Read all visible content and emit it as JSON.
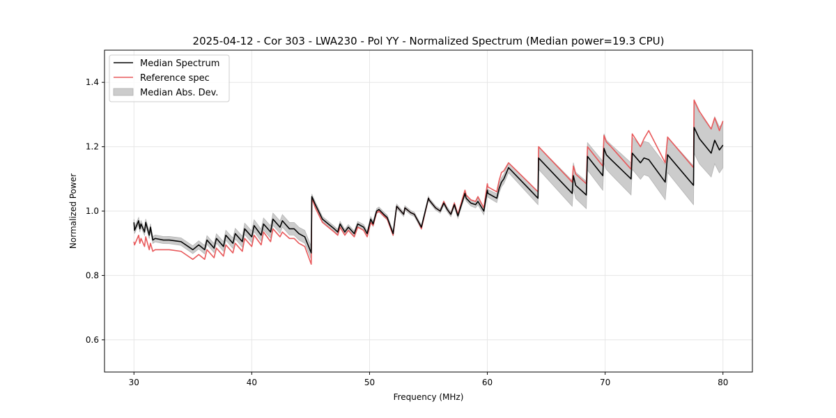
{
  "chart_data": {
    "type": "line",
    "title": "2025-04-12 - Cor 303 - LWA230 - Pol YY - Normalized Spectrum (Median power=19.3 CPU)",
    "xlabel": "Frequency (MHz)",
    "ylabel": "Normalized Power",
    "xlim": [
      27.5,
      82.5
    ],
    "ylim": [
      0.5,
      1.5
    ],
    "xticks": [
      30,
      40,
      50,
      60,
      70,
      80
    ],
    "xtick_labels": [
      "30",
      "40",
      "50",
      "60",
      "70",
      "80"
    ],
    "yticks": [
      0.6,
      0.8,
      1.0,
      1.2,
      1.4
    ],
    "ytick_labels": [
      "0.6",
      "0.8",
      "1.0",
      "1.2",
      "1.4"
    ],
    "grid": true,
    "legend_position": "top-left",
    "legend": [
      {
        "label": "Median Spectrum",
        "kind": "line",
        "color": "#000000"
      },
      {
        "label": "Reference spec",
        "kind": "line",
        "color": "#e8585a"
      },
      {
        "label": "Median Abs. Dev.",
        "kind": "band",
        "color": "#cccccc"
      }
    ],
    "series": [
      {
        "name": "Median Spectrum",
        "color": "#000000",
        "x": [
          30.0,
          30.05,
          30.4,
          30.5,
          30.6,
          30.9,
          31.0,
          31.3,
          31.4,
          31.6,
          31.8,
          32.5,
          33.0,
          34.0,
          35.0,
          35.5,
          36.0,
          36.2,
          36.8,
          37.0,
          37.6,
          37.8,
          38.4,
          38.6,
          39.2,
          39.4,
          40.0,
          40.2,
          40.8,
          41.0,
          41.6,
          41.8,
          42.4,
          42.6,
          43.2,
          43.6,
          44.0,
          44.5,
          45.05,
          45.1,
          45.4,
          46.0,
          46.5,
          47.0,
          47.3,
          47.5,
          47.9,
          48.2,
          48.7,
          49.0,
          49.5,
          49.8,
          50.1,
          50.3,
          50.6,
          50.8,
          51.2,
          51.5,
          52.0,
          52.3,
          52.9,
          53.0,
          53.5,
          53.8,
          54.1,
          54.4,
          55.0,
          55.05,
          55.6,
          56.0,
          56.3,
          56.6,
          56.9,
          57.2,
          57.5,
          58.1,
          58.2,
          58.6,
          59.0,
          59.2,
          59.7,
          60.0,
          60.05,
          60.8,
          61.0,
          61.2,
          61.4,
          61.8,
          64.3,
          64.35,
          67.2,
          67.3,
          67.5,
          68.4,
          68.5,
          69.8,
          69.9,
          70.1,
          70.5,
          72.2,
          72.3,
          73.0,
          73.3,
          73.7,
          75.1,
          75.3,
          77.5,
          77.55,
          78.0,
          79.0,
          79.3,
          79.7,
          80.0
        ],
        "values": [
          0.965,
          0.94,
          0.97,
          0.945,
          0.96,
          0.935,
          0.965,
          0.925,
          0.95,
          0.91,
          0.915,
          0.91,
          0.91,
          0.905,
          0.88,
          0.895,
          0.88,
          0.91,
          0.885,
          0.915,
          0.89,
          0.925,
          0.9,
          0.93,
          0.905,
          0.945,
          0.92,
          0.955,
          0.925,
          0.96,
          0.935,
          0.975,
          0.95,
          0.97,
          0.945,
          0.945,
          0.93,
          0.92,
          0.87,
          1.045,
          1.02,
          0.975,
          0.96,
          0.945,
          0.935,
          0.96,
          0.935,
          0.95,
          0.93,
          0.96,
          0.95,
          0.93,
          0.975,
          0.96,
          1.0,
          1.005,
          0.99,
          0.98,
          0.93,
          1.015,
          0.99,
          1.01,
          0.995,
          0.99,
          0.97,
          0.95,
          1.04,
          1.035,
          1.01,
          1.0,
          1.025,
          1.005,
          0.99,
          1.02,
          0.985,
          1.055,
          1.04,
          1.025,
          1.02,
          1.03,
          1.0,
          1.065,
          1.055,
          1.04,
          1.07,
          1.09,
          1.1,
          1.135,
          1.04,
          1.165,
          1.055,
          1.11,
          1.08,
          1.05,
          1.17,
          1.11,
          1.195,
          1.175,
          1.16,
          1.1,
          1.18,
          1.15,
          1.165,
          1.16,
          1.09,
          1.175,
          1.08,
          1.26,
          1.225,
          1.18,
          1.22,
          1.19,
          1.205
        ]
      },
      {
        "name": "Reference spec",
        "color": "#e8585a",
        "x": [
          30.0,
          30.05,
          30.4,
          30.5,
          30.6,
          30.9,
          31.0,
          31.3,
          31.4,
          31.6,
          31.8,
          32.5,
          33.0,
          34.0,
          35.0,
          35.5,
          36.0,
          36.2,
          36.8,
          37.0,
          37.6,
          37.8,
          38.4,
          38.6,
          39.2,
          39.4,
          40.0,
          40.2,
          40.8,
          41.0,
          41.6,
          41.8,
          42.4,
          42.6,
          43.2,
          43.6,
          44.0,
          44.5,
          45.05,
          45.1,
          45.4,
          46.0,
          46.5,
          47.0,
          47.3,
          47.5,
          47.9,
          48.2,
          48.7,
          49.0,
          49.5,
          49.8,
          50.1,
          50.3,
          50.6,
          50.8,
          51.2,
          51.5,
          52.0,
          52.3,
          52.9,
          53.0,
          53.5,
          53.8,
          54.1,
          54.4,
          55.0,
          55.05,
          55.6,
          56.0,
          56.3,
          56.6,
          56.9,
          57.2,
          57.5,
          58.1,
          58.2,
          58.6,
          59.0,
          59.2,
          59.7,
          60.0,
          60.05,
          60.8,
          61.0,
          61.2,
          61.4,
          61.8,
          64.3,
          64.35,
          67.2,
          67.3,
          67.5,
          68.4,
          68.5,
          69.8,
          69.9,
          70.1,
          70.5,
          72.2,
          72.3,
          73.0,
          73.3,
          73.7,
          75.1,
          75.3,
          77.5,
          77.55,
          78.0,
          79.0,
          79.3,
          79.7,
          80.0
        ],
        "values": [
          0.905,
          0.895,
          0.925,
          0.9,
          0.915,
          0.89,
          0.92,
          0.88,
          0.9,
          0.875,
          0.88,
          0.88,
          0.88,
          0.875,
          0.85,
          0.865,
          0.85,
          0.88,
          0.855,
          0.885,
          0.86,
          0.895,
          0.87,
          0.9,
          0.875,
          0.915,
          0.89,
          0.925,
          0.895,
          0.935,
          0.905,
          0.945,
          0.92,
          0.935,
          0.915,
          0.915,
          0.9,
          0.89,
          0.835,
          1.04,
          1.01,
          0.965,
          0.95,
          0.935,
          0.925,
          0.95,
          0.925,
          0.94,
          0.92,
          0.95,
          0.94,
          0.92,
          0.965,
          0.955,
          0.995,
          1.0,
          0.985,
          0.975,
          0.925,
          1.015,
          0.99,
          1.01,
          0.995,
          0.99,
          0.97,
          0.945,
          1.04,
          1.035,
          1.01,
          1.0,
          1.03,
          1.005,
          0.99,
          1.025,
          0.99,
          1.065,
          1.05,
          1.035,
          1.03,
          1.045,
          1.01,
          1.085,
          1.075,
          1.06,
          1.095,
          1.12,
          1.125,
          1.15,
          1.06,
          1.2,
          1.09,
          1.14,
          1.115,
          1.085,
          1.2,
          1.14,
          1.235,
          1.215,
          1.2,
          1.13,
          1.24,
          1.2,
          1.225,
          1.25,
          1.15,
          1.23,
          1.135,
          1.345,
          1.31,
          1.255,
          1.29,
          1.25,
          1.28
        ]
      }
    ],
    "band": {
      "name": "Median Abs. Dev.",
      "color": "#cccccc",
      "x": [
        30.0,
        35.0,
        40.0,
        44.5,
        45.05,
        45.1,
        50.0,
        55.0,
        58.0,
        60.0,
        64.3,
        64.35,
        67.2,
        69.8,
        72.3,
        75.3,
        77.5,
        77.55,
        80.0
      ],
      "half_width": [
        0.01,
        0.012,
        0.018,
        0.02,
        0.02,
        0.008,
        0.008,
        0.006,
        0.008,
        0.012,
        0.02,
        0.035,
        0.04,
        0.045,
        0.05,
        0.055,
        0.06,
        0.08,
        0.07
      ]
    }
  }
}
